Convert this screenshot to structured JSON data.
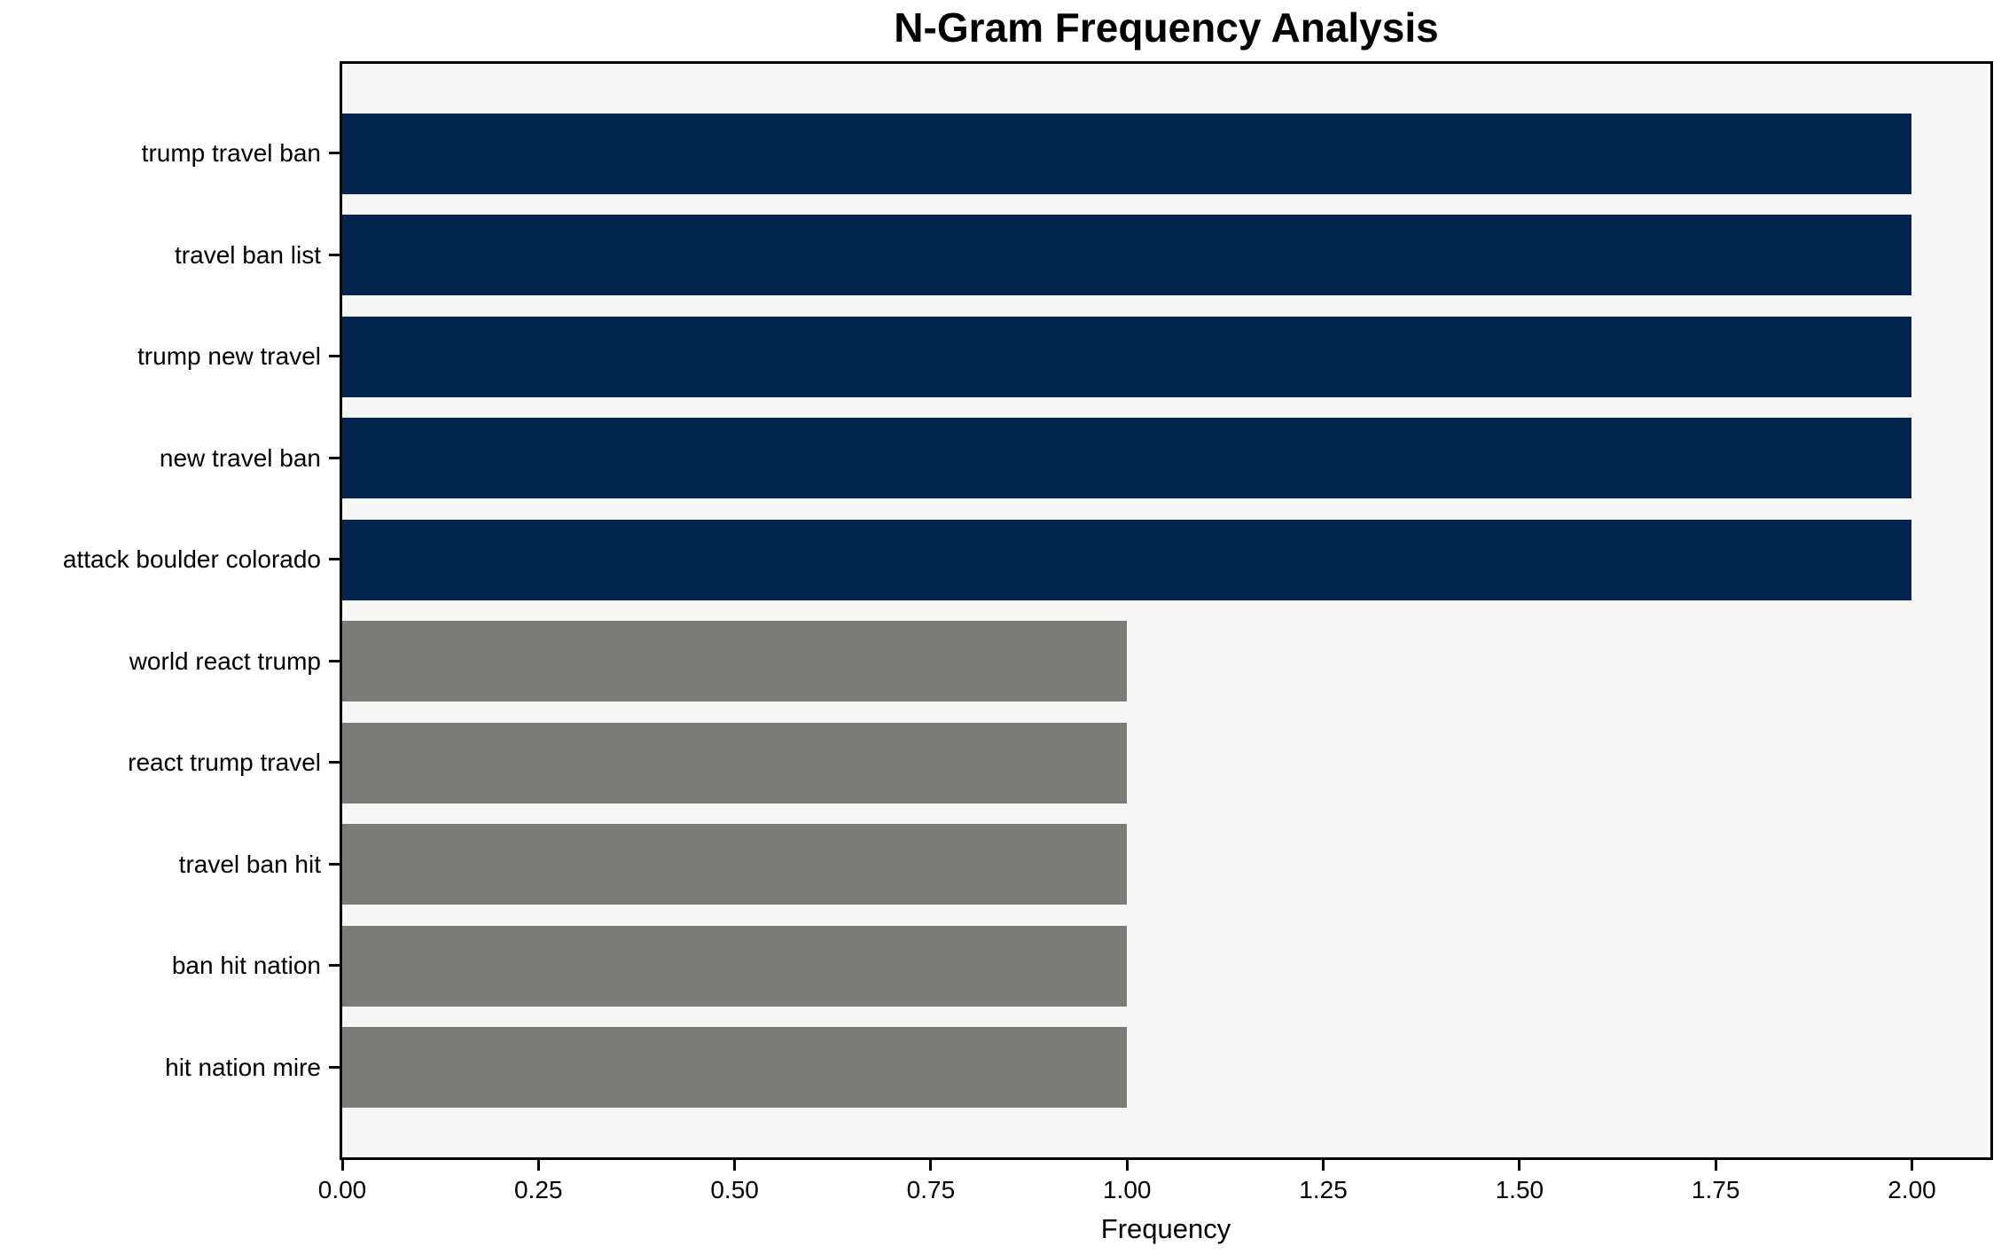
{
  "chart_data": {
    "type": "bar",
    "orientation": "horizontal",
    "title": "N-Gram Frequency Analysis",
    "xlabel": "Frequency",
    "ylabel": "",
    "categories": [
      "trump travel ban",
      "travel ban list",
      "trump new travel",
      "new travel ban",
      "attack boulder colorado",
      "world react trump",
      "react trump travel",
      "travel ban hit",
      "ban hit nation",
      "hit nation mire"
    ],
    "values": [
      2,
      2,
      2,
      2,
      2,
      1,
      1,
      1,
      1,
      1
    ],
    "bar_colors": [
      "#03244e",
      "#03244e",
      "#03244e",
      "#03244e",
      "#03244e",
      "#7b7b78",
      "#7b7b78",
      "#7b7b78",
      "#7b7b78",
      "#7b7b78"
    ],
    "xlim": [
      0,
      2.1
    ],
    "xticks": [
      0,
      0.25,
      0.5,
      0.75,
      1.0,
      1.25,
      1.5,
      1.75,
      2.0
    ],
    "xtick_labels": [
      "0.00",
      "0.25",
      "0.50",
      "0.75",
      "1.00",
      "1.25",
      "1.50",
      "1.75",
      "2.00"
    ],
    "grid": false,
    "legend": "none",
    "plot_background": "#f6f6f6",
    "figure_background": "#ffffff",
    "spine_color": "#000000"
  }
}
